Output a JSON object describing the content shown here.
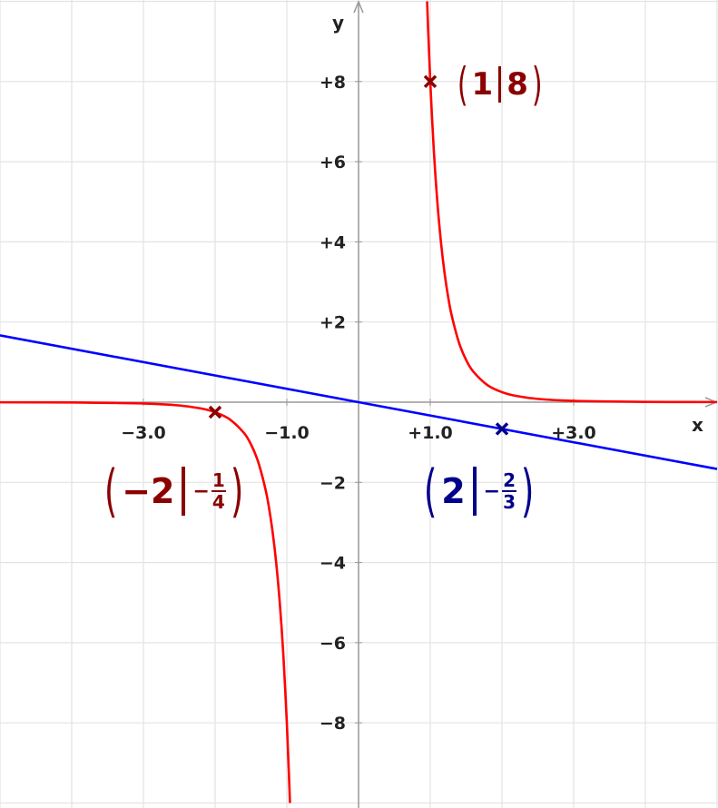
{
  "chart_data": {
    "type": "line",
    "xlabel": "x",
    "ylabel": "y",
    "xlim": [
      -5,
      5
    ],
    "ylim": [
      -10.1,
      10.05
    ],
    "grid": true,
    "x_ticks": [
      {
        "value": -3,
        "label": "−3.0"
      },
      {
        "value": -1,
        "label": "−1.0"
      },
      {
        "value": 1,
        "label": "+1.0"
      },
      {
        "value": 3,
        "label": "+3.0"
      }
    ],
    "y_ticks": [
      {
        "value": 8,
        "label": "+8"
      },
      {
        "value": 6,
        "label": "+6"
      },
      {
        "value": 4,
        "label": "+4"
      },
      {
        "value": 2,
        "label": "+2"
      },
      {
        "value": -2,
        "label": "−2"
      },
      {
        "value": -4,
        "label": "−4"
      },
      {
        "value": -6,
        "label": "−6"
      },
      {
        "value": -8,
        "label": "−8"
      }
    ],
    "series": [
      {
        "color": "#ff0000",
        "branches": [
          {
            "x": [
              -5,
              -4,
              -3,
              -2.5,
              -2.2,
              -2,
              -1.8,
              -1.6,
              -1.5,
              -1.4,
              -1.3,
              -1.25,
              -1.2,
              -1.15,
              -1.1,
              -1.05,
              -1.0,
              -0.97,
              -0.956
            ],
            "y": [
              -0.00256,
              -0.0078,
              -0.033,
              -0.082,
              -0.155,
              -0.25,
              -0.423,
              -0.763,
              -1.053,
              -1.488,
              -2.155,
              -2.62,
              -3.215,
              -3.98,
              -4.97,
              -6.27,
              -8,
              -9.32,
              -10
            ]
          },
          {
            "x": [
              0.956,
              0.97,
              1.0,
              1.05,
              1.1,
              1.15,
              1.2,
              1.25,
              1.3,
              1.4,
              1.5,
              1.6,
              1.8,
              2,
              2.2,
              2.5,
              3,
              4,
              5
            ],
            "y": [
              10,
              9.32,
              8,
              6.27,
              4.97,
              3.98,
              3.215,
              2.62,
              2.155,
              1.488,
              1.053,
              0.763,
              0.423,
              0.25,
              0.155,
              0.082,
              0.033,
              0.0078,
              0.00256
            ]
          }
        ]
      },
      {
        "color": "#0000ff",
        "branches": [
          {
            "x": [
              -5,
              5
            ],
            "y": [
              1.6667,
              -1.6667
            ]
          }
        ]
      }
    ],
    "points": [
      {
        "x": 1,
        "y": 8,
        "marker": "x",
        "color": "#8b0000",
        "label_x": "1",
        "label_y": "8"
      },
      {
        "x": -2,
        "y": -0.25,
        "marker": "x",
        "color": "#8b0000",
        "label_x": "−2",
        "label_y_sign": "−",
        "label_y_num": "1",
        "label_y_den": "4"
      },
      {
        "x": 2,
        "y": -0.6667,
        "marker": "x",
        "color": "#00008b",
        "label_x": "2",
        "label_y_sign": "−",
        "label_y_num": "2",
        "label_y_den": "3"
      }
    ]
  }
}
